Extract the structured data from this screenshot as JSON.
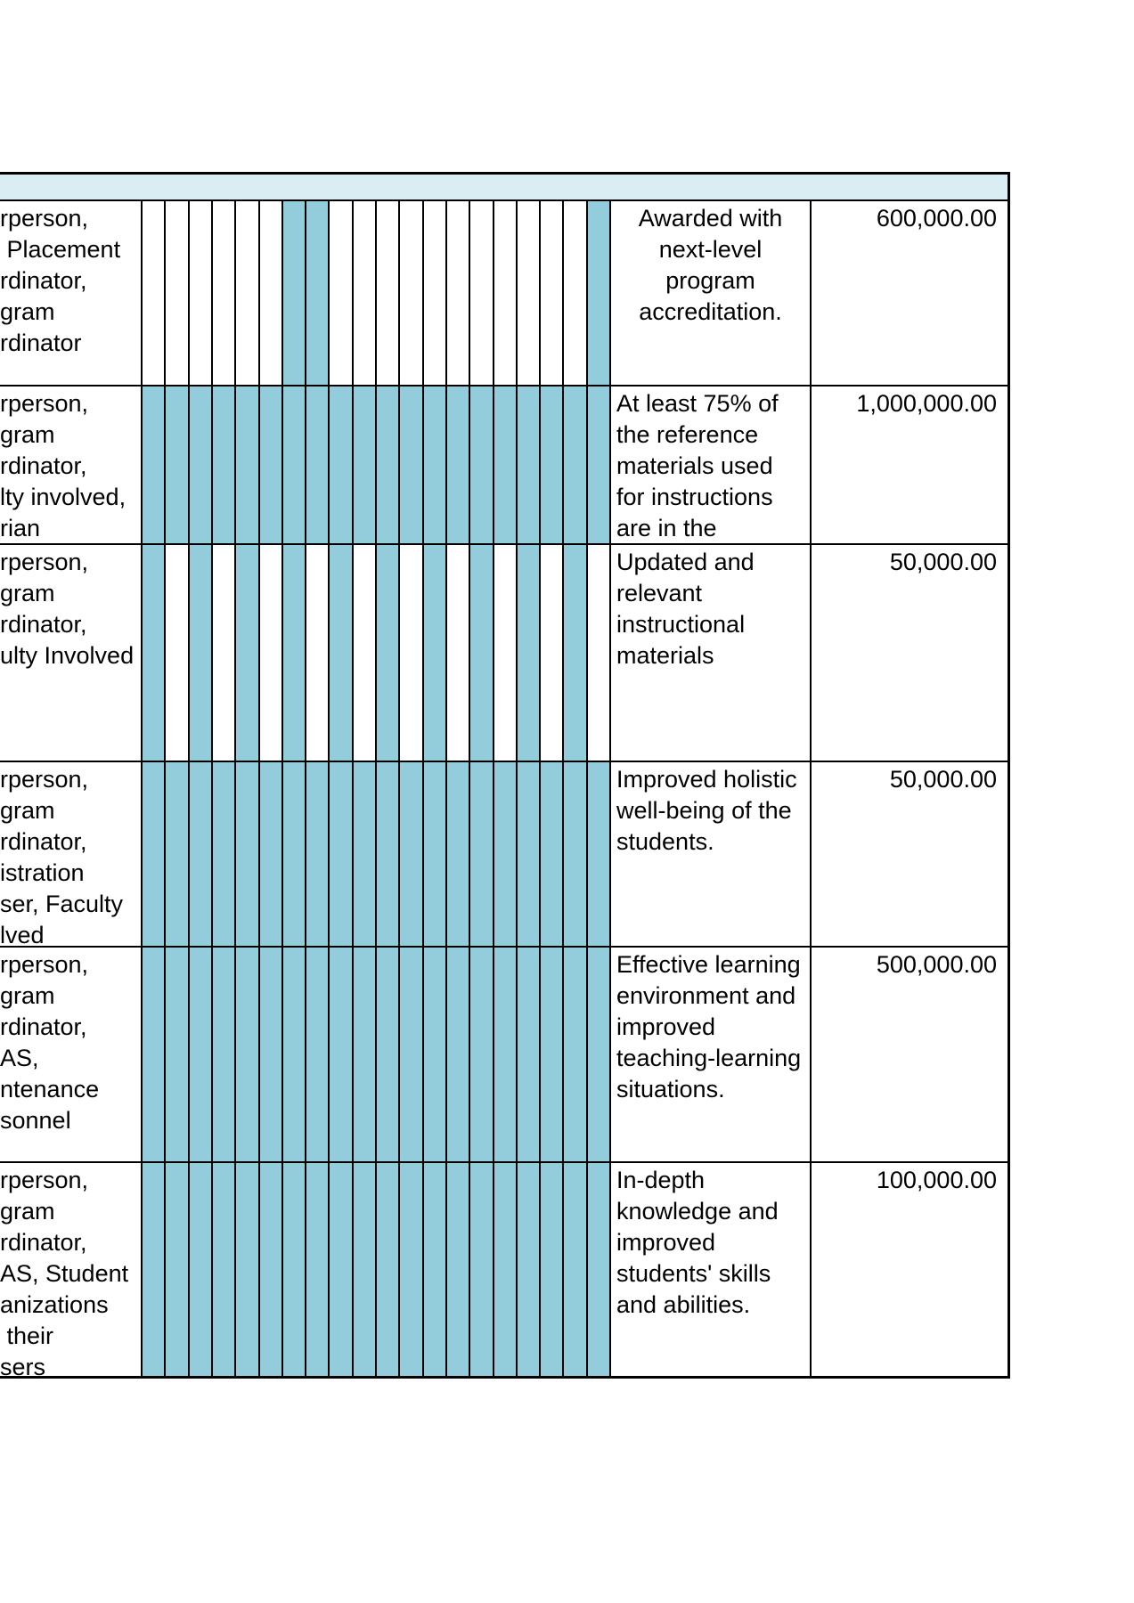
{
  "table": {
    "rows": [
      {
        "responsible": "rperson,\n Placement\nrdinator,\ngram\nrdinator",
        "outcome": "Awarded with next-level program accreditation.",
        "outcome_centered": true,
        "budget": "600,000.00",
        "months_shaded": [
          false,
          false,
          false,
          false,
          false,
          false,
          true,
          true,
          false,
          false,
          false,
          false,
          false,
          false,
          false,
          false,
          false,
          false,
          false,
          true
        ]
      },
      {
        "responsible": "rperson,\ngram\nrdinator,\nlty involved,\nrian",
        "outcome": "At least 75% of the reference materials used for instructions are in the",
        "outcome_centered": false,
        "budget": "1,000,000.00",
        "months_shaded": [
          true,
          true,
          true,
          true,
          true,
          true,
          true,
          true,
          true,
          true,
          true,
          true,
          true,
          true,
          true,
          true,
          true,
          true,
          true,
          true
        ]
      },
      {
        "responsible": "rperson,\ngram\nrdinator,\nulty Involved",
        "outcome": "Updated and relevant instructional materials",
        "outcome_centered": false,
        "budget": "50,000.00",
        "months_shaded": [
          true,
          false,
          true,
          false,
          true,
          false,
          true,
          false,
          true,
          false,
          true,
          false,
          true,
          false,
          true,
          false,
          true,
          false,
          true,
          false
        ]
      },
      {
        "responsible": "rperson,\ngram\nrdinator,\nistration\nser, Faculty\nlved",
        "outcome": "Improved holistic well-being of the students.",
        "outcome_centered": false,
        "budget": "50,000.00",
        "months_shaded": [
          true,
          true,
          true,
          true,
          true,
          true,
          true,
          true,
          true,
          true,
          true,
          true,
          true,
          true,
          true,
          true,
          true,
          true,
          true,
          true
        ]
      },
      {
        "responsible": "rperson,\ngram\nrdinator,\nAS,\nntenance\nsonnel",
        "outcome": "Effective learning environment and improved teaching-learning situations.",
        "outcome_centered": false,
        "budget": "500,000.00",
        "months_shaded": [
          true,
          true,
          true,
          true,
          true,
          true,
          true,
          true,
          true,
          true,
          true,
          true,
          true,
          true,
          true,
          true,
          true,
          true,
          true,
          true
        ]
      },
      {
        "responsible": "rperson,\ngram\nrdinator,\nAS, Student\nanizations\n their\nsers",
        "outcome": "In-depth knowledge and improved students' skills and abilities.",
        "outcome_centered": false,
        "budget": "100,000.00",
        "months_shaded": [
          true,
          true,
          true,
          true,
          true,
          true,
          true,
          true,
          true,
          true,
          true,
          true,
          true,
          true,
          true,
          true,
          true,
          true,
          true,
          true
        ]
      }
    ]
  },
  "colors": {
    "header_band": "#daedf2",
    "shaded_cell": "#93cddc",
    "grid_line": "#000000"
  }
}
